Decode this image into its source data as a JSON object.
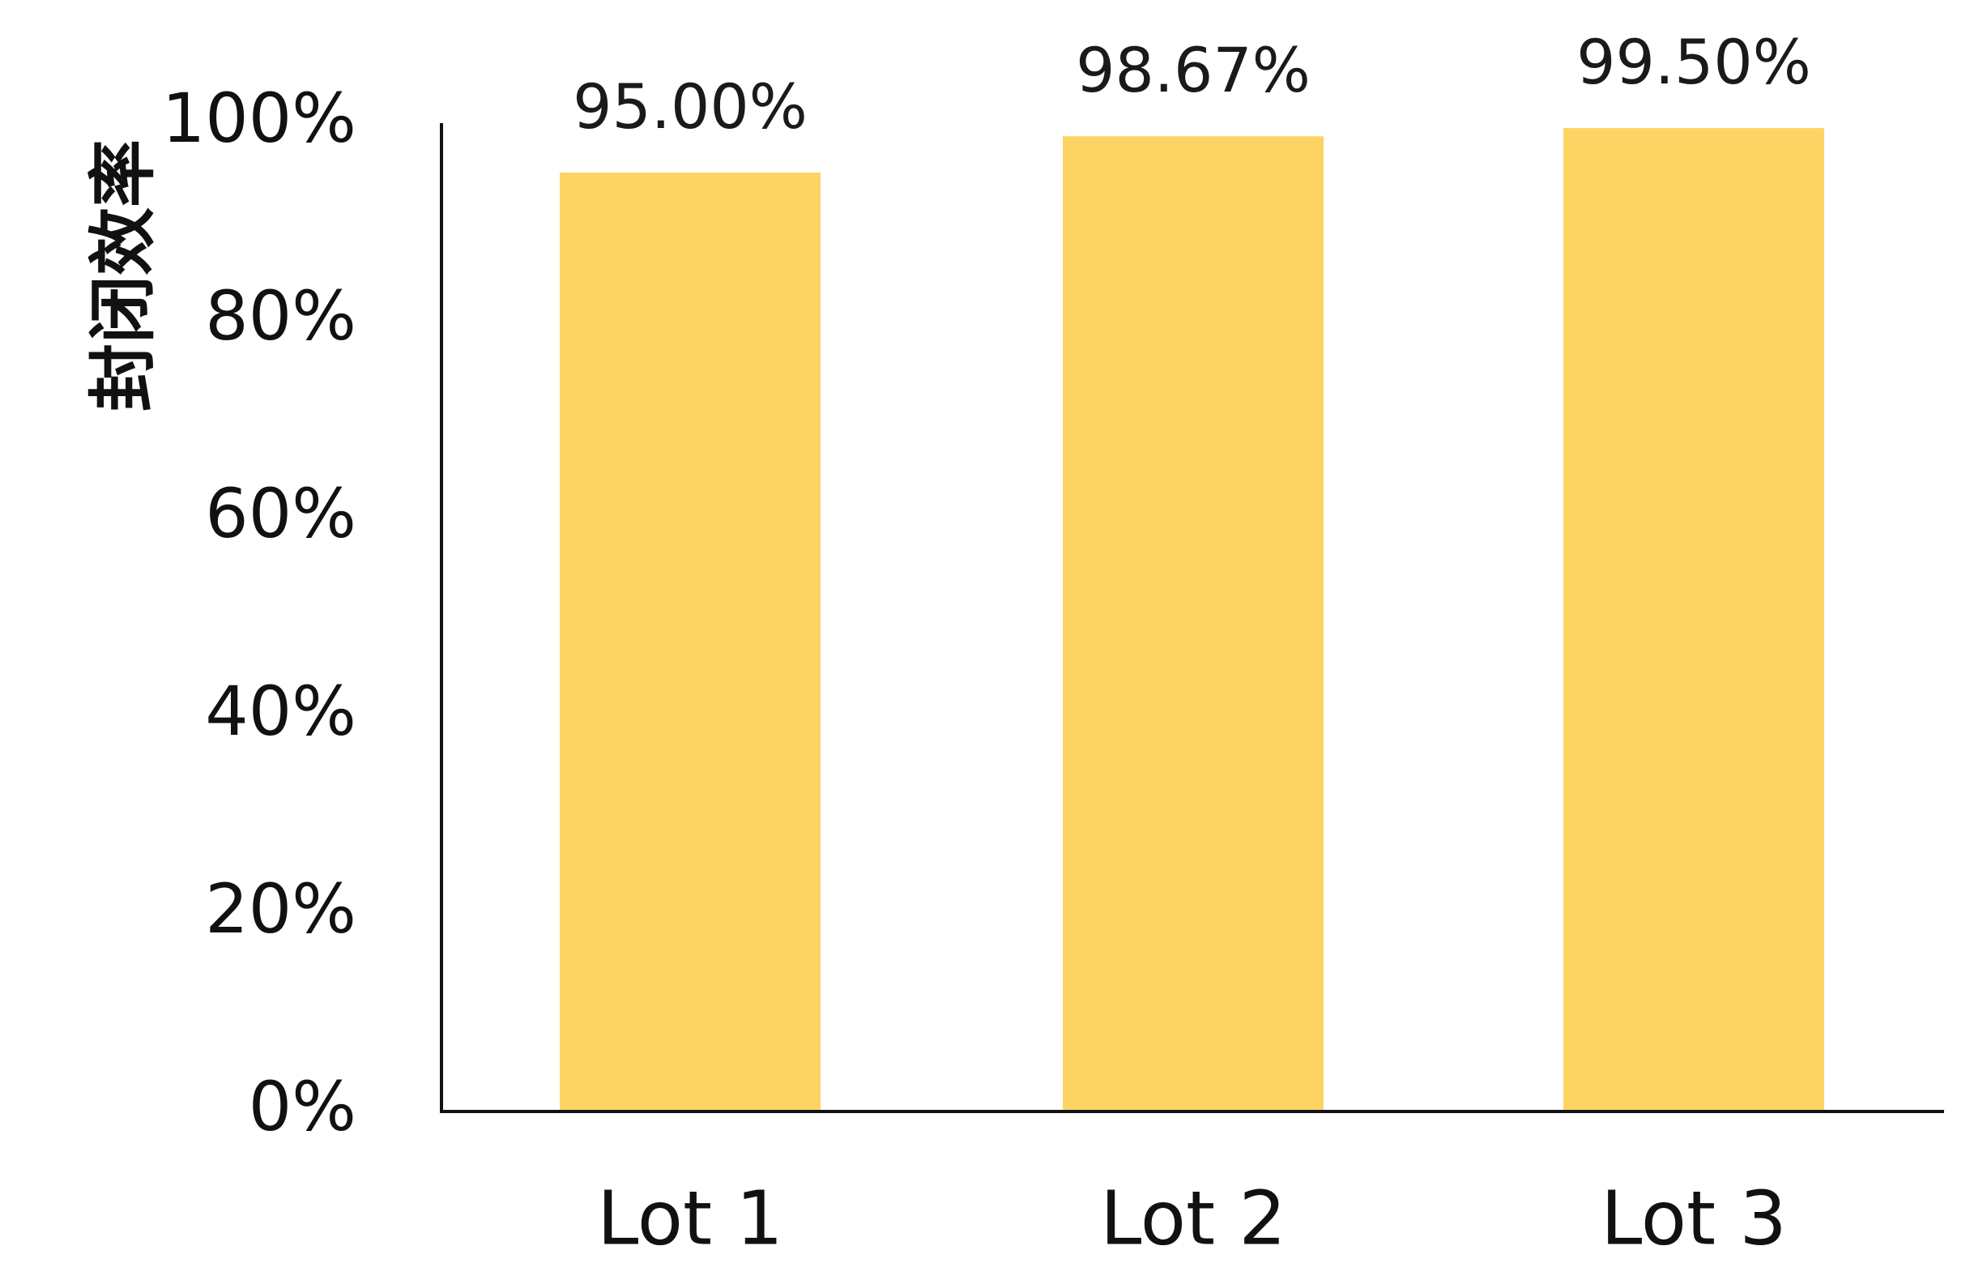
{
  "chart_data": {
    "type": "bar",
    "title": "",
    "xlabel": "",
    "ylabel": "封闭效率",
    "categories": [
      "Lot 1",
      "Lot 2",
      "Lot 3"
    ],
    "values": [
      95.0,
      98.67,
      99.5
    ],
    "data_labels": [
      "95.00%",
      "98.67%",
      "99.50%"
    ],
    "yticks": [
      "0%",
      "20%",
      "40%",
      "60%",
      "80%",
      "100%"
    ],
    "ytick_values": [
      0,
      20,
      40,
      60,
      80,
      100
    ],
    "ylim": [
      0,
      100
    ],
    "grid": false,
    "legend": "none",
    "bar_color": "#FDD463",
    "axis_color": "#111111"
  }
}
